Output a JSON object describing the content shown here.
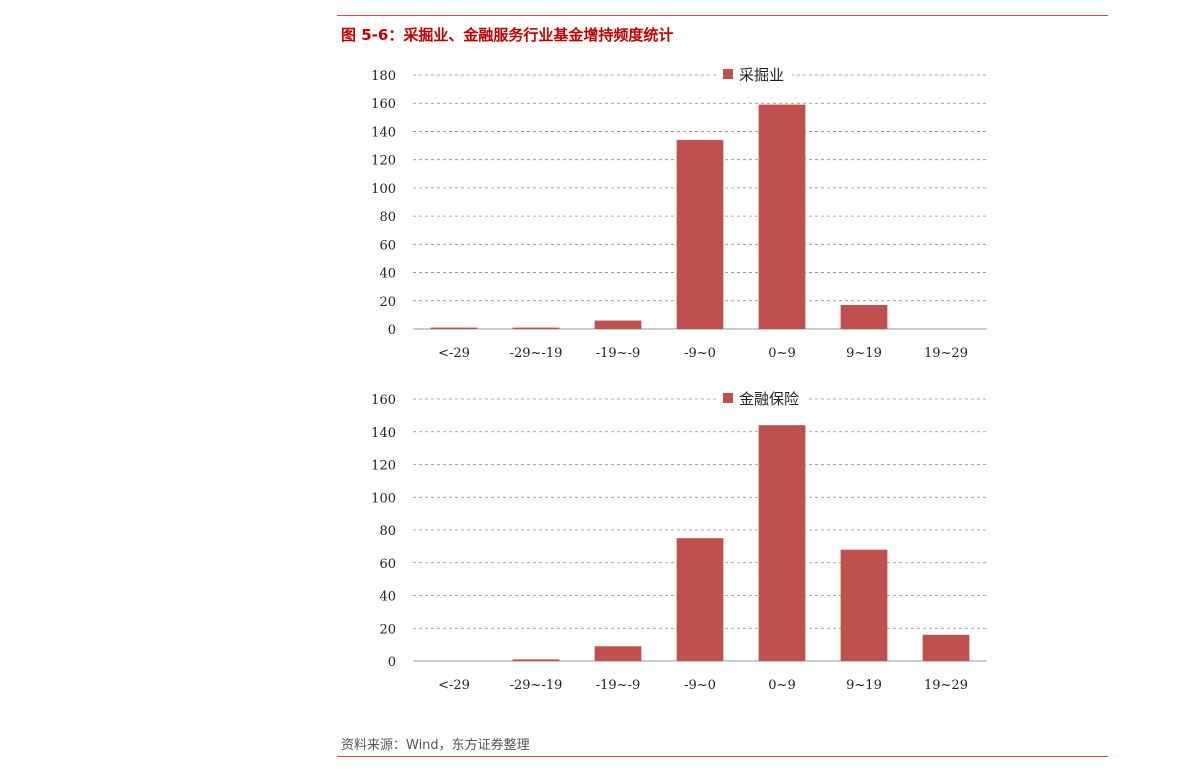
{
  "figure": {
    "title": "图 5-6：采掘业、金融服务行业基金增持频度统计",
    "source": "资料来源：Wind，东方证券整理"
  },
  "chart_data": [
    {
      "type": "bar",
      "categories": [
        "<-29",
        "-29~-19",
        "-19~-9",
        "-9~0",
        "0~9",
        "9~19",
        "19~29"
      ],
      "series": [
        {
          "name": "采掘业",
          "values": [
            1,
            1,
            6,
            134,
            159,
            17,
            0
          ],
          "color": "#c0504d"
        }
      ],
      "ylim": [
        0,
        180
      ],
      "yticks": [
        0,
        20,
        40,
        60,
        80,
        100,
        120,
        140,
        160,
        180
      ],
      "grid": true,
      "legend": "top-center"
    },
    {
      "type": "bar",
      "categories": [
        "<-29",
        "-29~-19",
        "-19~-9",
        "-9~0",
        "0~9",
        "9~19",
        "19~29"
      ],
      "series": [
        {
          "name": "金融保险",
          "values": [
            0,
            1,
            9,
            75,
            144,
            68,
            16
          ],
          "color": "#c0504d"
        }
      ],
      "ylim": [
        0,
        160
      ],
      "yticks": [
        0,
        20,
        40,
        60,
        80,
        100,
        120,
        140,
        160
      ],
      "grid": true,
      "legend": "top-center"
    }
  ]
}
